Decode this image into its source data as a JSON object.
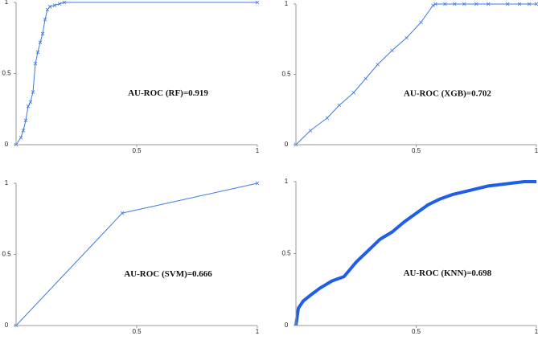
{
  "chart_data": [
    {
      "type": "line",
      "annotation": "AU-ROC (RF)=0.919",
      "xlim": [
        0,
        1
      ],
      "ylim": [
        0,
        1
      ],
      "xticks": [
        0.5,
        1
      ],
      "yticks": [
        0,
        0.5,
        1
      ],
      "markers": true,
      "line_width": 1,
      "series": [
        {
          "color": "#3b7be0",
          "x": [
            0,
            0.02,
            0.03,
            0.04,
            0.05,
            0.06,
            0.07,
            0.08,
            0.09,
            0.1,
            0.11,
            0.12,
            0.13,
            0.14,
            0.16,
            0.18,
            0.2,
            1
          ],
          "values": [
            0,
            0.05,
            0.1,
            0.17,
            0.27,
            0.3,
            0.37,
            0.57,
            0.65,
            0.72,
            0.78,
            0.88,
            0.95,
            0.97,
            0.98,
            0.99,
            1,
            1
          ]
        }
      ]
    },
    {
      "type": "line",
      "annotation": "AU-ROC (XGB)=0.702",
      "xlim": [
        0,
        1
      ],
      "ylim": [
        0,
        1
      ],
      "xticks": [
        0.5,
        1
      ],
      "yticks": [
        0,
        0.5,
        1
      ],
      "markers": true,
      "line_width": 1,
      "series": [
        {
          "color": "#3b7be0",
          "x": [
            0,
            0.06,
            0.13,
            0.18,
            0.24,
            0.29,
            0.34,
            0.4,
            0.46,
            0.52,
            0.57,
            0.58,
            0.62,
            0.66,
            0.7,
            0.75,
            0.8,
            0.88,
            0.93,
            0.97,
            1
          ],
          "values": [
            0,
            0.1,
            0.19,
            0.28,
            0.37,
            0.47,
            0.57,
            0.67,
            0.76,
            0.87,
            0.99,
            1,
            1,
            1,
            1,
            1,
            1,
            1,
            1,
            1,
            1
          ]
        }
      ]
    },
    {
      "type": "line",
      "annotation": "AU-ROC (SVM)=0.666",
      "xlim": [
        0,
        1
      ],
      "ylim": [
        0,
        1
      ],
      "xticks": [
        0.5,
        1
      ],
      "yticks": [
        0,
        0.5,
        1
      ],
      "markers": true,
      "line_width": 1,
      "series": [
        {
          "color": "#3b7be0",
          "x": [
            0,
            0.44,
            1
          ],
          "values": [
            0,
            0.79,
            1
          ]
        }
      ]
    },
    {
      "type": "line",
      "annotation": "AU-ROC (KNN)=0.698",
      "xlim": [
        0,
        1
      ],
      "ylim": [
        0,
        1
      ],
      "xticks": [
        0.5,
        1
      ],
      "yticks": [
        0,
        0.5,
        1
      ],
      "markers": false,
      "line_width": 4,
      "series": [
        {
          "color": "#1f5ee8",
          "x": [
            0,
            0.01,
            0.03,
            0.06,
            0.1,
            0.15,
            0.2,
            0.25,
            0.3,
            0.35,
            0.4,
            0.45,
            0.5,
            0.55,
            0.6,
            0.65,
            0.7,
            0.75,
            0.8,
            0.85,
            0.9,
            0.95,
            1
          ],
          "values": [
            0,
            0.12,
            0.17,
            0.21,
            0.26,
            0.31,
            0.34,
            0.44,
            0.52,
            0.6,
            0.65,
            0.72,
            0.78,
            0.84,
            0.88,
            0.91,
            0.93,
            0.95,
            0.97,
            0.98,
            0.99,
            1,
            1
          ]
        }
      ]
    }
  ]
}
